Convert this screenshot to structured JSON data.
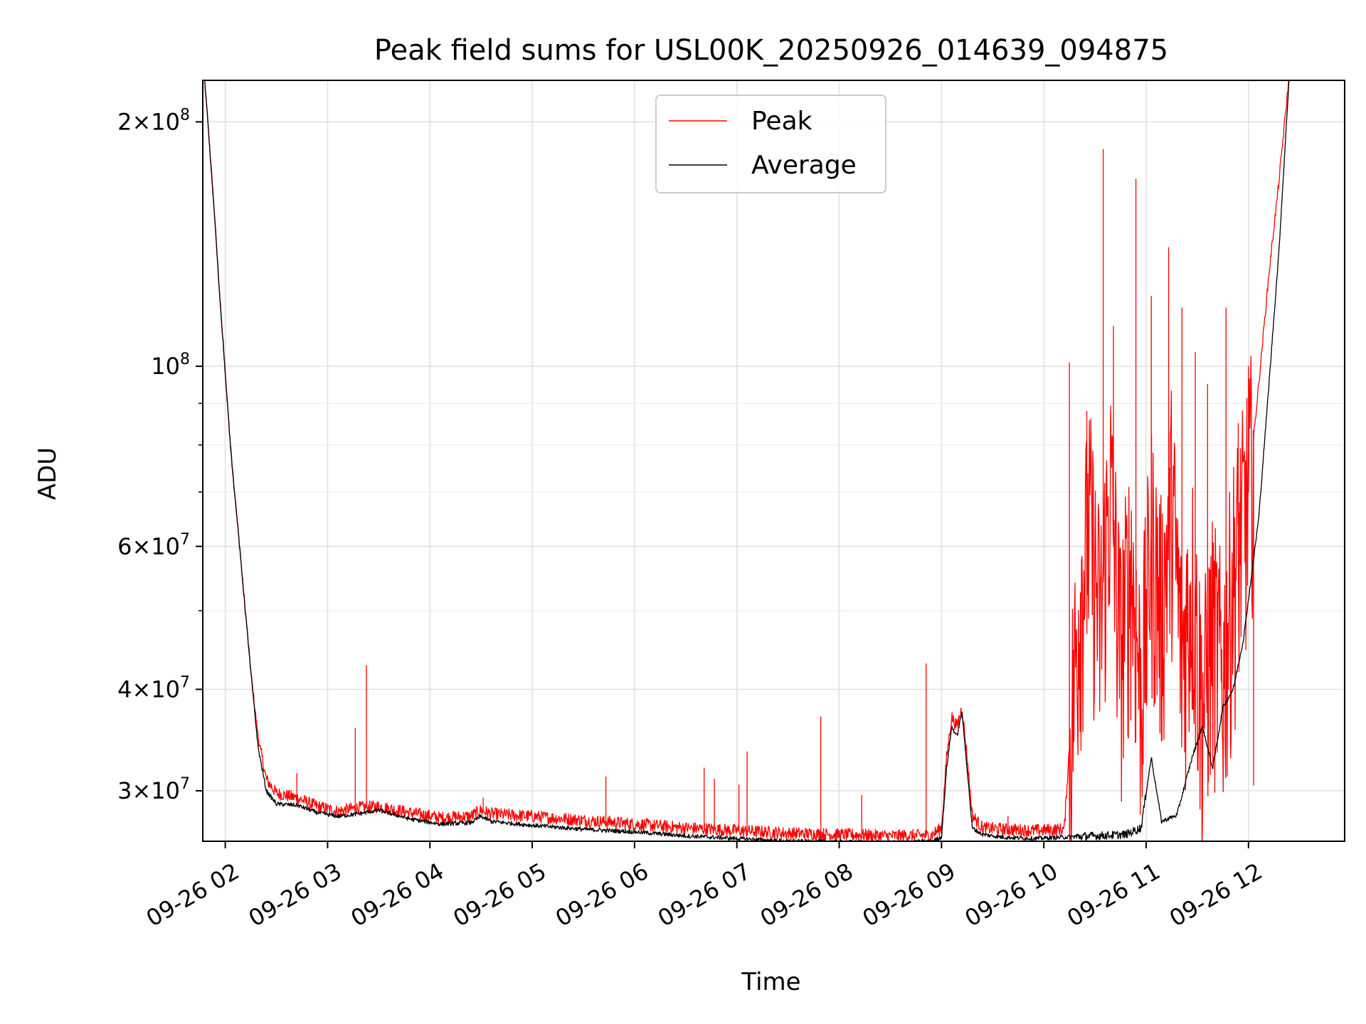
{
  "chart_data": {
    "type": "line",
    "title": "Peak field sums for USL00K_20250926_014639_094875",
    "xlabel": "Time",
    "ylabel": "ADU",
    "yscale": "log",
    "xlim_hours": [
      1.78,
      12.94
    ],
    "ylim": [
      26000000,
      225000000
    ],
    "grid": true,
    "legend_position": "upper center",
    "x_ticks": [
      {
        "hour": 2,
        "label": "09-26 02"
      },
      {
        "hour": 3,
        "label": "09-26 03"
      },
      {
        "hour": 4,
        "label": "09-26 04"
      },
      {
        "hour": 5,
        "label": "09-26 05"
      },
      {
        "hour": 6,
        "label": "09-26 06"
      },
      {
        "hour": 7,
        "label": "09-26 07"
      },
      {
        "hour": 8,
        "label": "09-26 08"
      },
      {
        "hour": 9,
        "label": "09-26 09"
      },
      {
        "hour": 10,
        "label": "09-26 10"
      },
      {
        "hour": 11,
        "label": "09-26 11"
      },
      {
        "hour": 12,
        "label": "09-26 12"
      }
    ],
    "y_ticks": [
      {
        "value": 30000000,
        "mantissa": "3",
        "exp": "7"
      },
      {
        "value": 40000000,
        "mantissa": "4",
        "exp": "7"
      },
      {
        "value": 60000000,
        "mantissa": "6",
        "exp": "7"
      },
      {
        "value": 100000000,
        "mantissa": "",
        "exp": "8"
      },
      {
        "value": 200000000,
        "mantissa": "2",
        "exp": "8"
      }
    ],
    "y_minor_ticks": [
      50000000,
      70000000,
      80000000,
      90000000
    ],
    "series": [
      {
        "name": "Peak",
        "color": "#ff0000",
        "points": [
          [
            1.78,
            240000000
          ],
          [
            1.83,
            200000000
          ],
          [
            1.9,
            150000000
          ],
          [
            1.95,
            120000000
          ],
          [
            2.05,
            80000000
          ],
          [
            2.15,
            58000000
          ],
          [
            2.25,
            42000000
          ],
          [
            2.32,
            35000000
          ],
          [
            2.4,
            31000000
          ],
          [
            2.5,
            29800000
          ],
          [
            2.7,
            29400000
          ],
          [
            2.9,
            28700000
          ],
          [
            3.1,
            28300000
          ],
          [
            3.3,
            28600000
          ],
          [
            3.5,
            28700000
          ],
          [
            3.8,
            28200000
          ],
          [
            4.1,
            27800000
          ],
          [
            4.4,
            27900000
          ],
          [
            4.5,
            28400000
          ],
          [
            4.6,
            28100000
          ],
          [
            5.0,
            27900000
          ],
          [
            5.5,
            27600000
          ],
          [
            6.0,
            27300000
          ],
          [
            6.5,
            27000000
          ],
          [
            7.0,
            26800000
          ],
          [
            7.5,
            26600000
          ],
          [
            8.0,
            26500000
          ],
          [
            8.5,
            26400000
          ],
          [
            8.9,
            26450000
          ],
          [
            9.0,
            27000000
          ],
          [
            9.05,
            33000000
          ],
          [
            9.1,
            37000000
          ],
          [
            9.15,
            36000000
          ],
          [
            9.2,
            38000000
          ],
          [
            9.25,
            33000000
          ],
          [
            9.3,
            28000000
          ],
          [
            9.4,
            27000000
          ],
          [
            9.6,
            26900000
          ],
          [
            9.9,
            26800000
          ],
          [
            10.2,
            26900000
          ],
          [
            10.25,
            34000000
          ],
          [
            10.35,
            52000000
          ],
          [
            10.45,
            65000000
          ],
          [
            10.55,
            48000000
          ],
          [
            10.65,
            72000000
          ],
          [
            10.75,
            45000000
          ],
          [
            10.85,
            58000000
          ],
          [
            10.95,
            40000000
          ],
          [
            11.05,
            62000000
          ],
          [
            11.15,
            50000000
          ],
          [
            11.25,
            70000000
          ],
          [
            11.35,
            44000000
          ],
          [
            11.45,
            55000000
          ],
          [
            11.55,
            38000000
          ],
          [
            11.65,
            48000000
          ],
          [
            11.75,
            42000000
          ],
          [
            11.85,
            56000000
          ],
          [
            11.92,
            62000000
          ],
          [
            12.0,
            70000000
          ],
          [
            12.1,
            95000000
          ],
          [
            12.2,
            130000000
          ],
          [
            12.3,
            170000000
          ],
          [
            12.4,
            230000000
          ]
        ],
        "spikes": [
          [
            2.7,
            31500000
          ],
          [
            3.27,
            35800000
          ],
          [
            3.38,
            42800000
          ],
          [
            4.52,
            29400000
          ],
          [
            5.72,
            31200000
          ],
          [
            6.68,
            32000000
          ],
          [
            6.78,
            31000000
          ],
          [
            7.02,
            30500000
          ],
          [
            7.1,
            33500000
          ],
          [
            7.82,
            37000000
          ],
          [
            8.22,
            29600000
          ],
          [
            8.85,
            43000000
          ],
          [
            9.65,
            27900000
          ],
          [
            10.25,
            101000000
          ],
          [
            10.42,
            88000000
          ],
          [
            10.58,
            185000000
          ],
          [
            10.68,
            112000000
          ],
          [
            10.9,
            170000000
          ],
          [
            11.05,
            122000000
          ],
          [
            11.22,
            140000000
          ],
          [
            11.35,
            118000000
          ],
          [
            11.48,
            104000000
          ],
          [
            11.6,
            95000000
          ],
          [
            11.78,
            118000000
          ],
          [
            11.9,
            85000000
          ],
          [
            12.0,
            100000000
          ],
          [
            12.05,
            30500000
          ]
        ]
      },
      {
        "name": "Average",
        "color": "#000000",
        "points": [
          [
            1.78,
            240000000
          ],
          [
            1.83,
            200000000
          ],
          [
            1.9,
            150000000
          ],
          [
            1.95,
            120000000
          ],
          [
            2.05,
            80000000
          ],
          [
            2.15,
            58000000
          ],
          [
            2.25,
            42000000
          ],
          [
            2.32,
            34000000
          ],
          [
            2.4,
            30000000
          ],
          [
            2.5,
            28900000
          ],
          [
            2.7,
            28800000
          ],
          [
            2.9,
            28200000
          ],
          [
            3.1,
            27900000
          ],
          [
            3.3,
            28100000
          ],
          [
            3.5,
            28400000
          ],
          [
            3.8,
            27700000
          ],
          [
            4.1,
            27300000
          ],
          [
            4.4,
            27400000
          ],
          [
            4.5,
            27900000
          ],
          [
            4.6,
            27500000
          ],
          [
            5.0,
            27200000
          ],
          [
            5.5,
            26900000
          ],
          [
            6.0,
            26700000
          ],
          [
            6.5,
            26400000
          ],
          [
            7.0,
            26200000
          ],
          [
            7.5,
            26000000
          ],
          [
            8.0,
            25950000
          ],
          [
            8.5,
            25900000
          ],
          [
            8.9,
            26000000
          ],
          [
            9.0,
            26300000
          ],
          [
            9.05,
            32000000
          ],
          [
            9.1,
            36000000
          ],
          [
            9.15,
            35000000
          ],
          [
            9.2,
            37500000
          ],
          [
            9.25,
            32000000
          ],
          [
            9.3,
            27000000
          ],
          [
            9.4,
            26500000
          ],
          [
            9.6,
            26300000
          ],
          [
            9.9,
            26200000
          ],
          [
            10.2,
            26300000
          ],
          [
            10.5,
            26400000
          ],
          [
            10.8,
            26500000
          ],
          [
            10.95,
            27000000
          ],
          [
            11.05,
            33000000
          ],
          [
            11.15,
            27500000
          ],
          [
            11.3,
            28000000
          ],
          [
            11.45,
            33000000
          ],
          [
            11.55,
            36000000
          ],
          [
            11.65,
            32000000
          ],
          [
            11.75,
            38000000
          ],
          [
            11.85,
            40000000
          ],
          [
            11.95,
            46000000
          ],
          [
            12.1,
            65000000
          ],
          [
            12.2,
            95000000
          ],
          [
            12.3,
            140000000
          ],
          [
            12.4,
            230000000
          ]
        ]
      }
    ]
  }
}
